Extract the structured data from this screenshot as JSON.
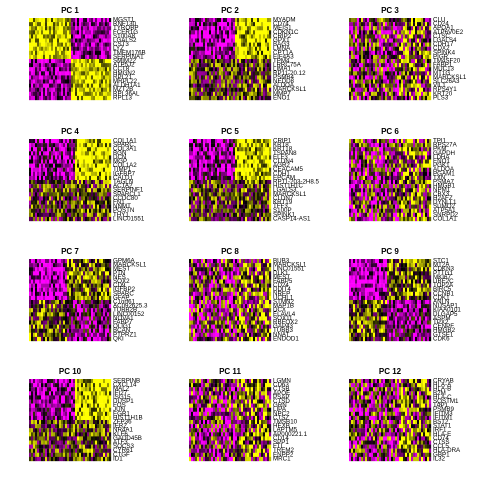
{
  "chart_data": {
    "type": "heatmap",
    "layout": "4 rows x 3 columns of dimensional-reduction heatmaps",
    "colors": {
      "low": "#ff00ff",
      "mid": "#000000",
      "high": "#ffff00"
    },
    "panels": [
      {
        "title": "PC 1",
        "pattern": "blocks",
        "genes": [
          "MGST1",
          "RNF130",
          "TYROBP",
          "FCER1G",
          "S100A8",
          "LGALS2",
          "CST3",
          "LYZ",
          "TMEM176B",
          "SERPINA1",
          "SMIM22",
          "ATP5J2",
          "CCT8",
          "HMGN2",
          "RPL21",
          "MRPL22",
          "ALDH1A1",
          "MZT2B",
          "RPL36AL",
          "RPL13"
        ]
      },
      {
        "title": "PC 2",
        "pattern": "right-yellow",
        "genes": [
          "MYADM",
          "CD74",
          "MEIS1",
          "CDKN1C",
          "CRIP2",
          "GPX1",
          "BAG3",
          "LMNA",
          "CPT1A",
          "EIF4A3",
          "TPM4",
          "LRRC75A",
          "LIMA1",
          "RP11-20.12",
          "PSMB4",
          "NEDD8",
          "ALDOA",
          "MARCKSL1",
          "MMP7",
          "ENO1"
        ]
      },
      {
        "title": "PC 3",
        "pattern": "noise",
        "genes": [
          "CLU",
          "CD24",
          "APOA1",
          "ATP6V0E2",
          "CTSC",
          "LGALS4",
          "CDH17",
          "CDX2",
          "SPINK4",
          "PIGR",
          "TM4SF20",
          "FABP1",
          "MUC13",
          "MT1G",
          "MARCKSL1",
          "SLC26A3",
          "VIL1",
          "RPS4Y1",
          "KRT20",
          "PLS3"
        ]
      },
      {
        "title": "PC 4",
        "pattern": "right-yellow",
        "genes": [
          "COL1A1",
          "SPARC",
          "COL3A1",
          "BGN",
          "DCN",
          "MGP",
          "COL1A2",
          "TIMP1",
          "IGFBP7",
          "CALD1",
          "TAGLN",
          "ACTA2",
          "SERPINF1",
          "SPARCL1",
          "CCDC80",
          "FN1",
          "NNMT",
          "POSTN",
          "THY1",
          "LINC01551"
        ]
      },
      {
        "title": "PC 5",
        "pattern": "right-yellow",
        "genes": [
          "CRIP1",
          "KRT8",
          "KRT18",
          "TSPAN8",
          "ELF3",
          "CLDN4",
          "AGR2",
          "CEACAM5",
          "CDH1",
          "EPCAM",
          "RP11-203-2H8.5",
          "HIST1H1C",
          "LGALS3",
          "MARCKSL1",
          "CLDN7",
          "KRT19",
          "TFF3",
          "S100P",
          "SPINK1",
          "CASP14-AS1"
        ]
      },
      {
        "title": "PC 6",
        "pattern": "noise",
        "genes": [
          "TPI1",
          "RPS27A",
          "PKM",
          "GAPDH",
          "LDHA",
          "ENO1",
          "PGK1",
          "ALDOA",
          "PGAM1",
          "TXN",
          "PSMA7",
          "HMGB1",
          "NPM1",
          "CBX3",
          "H2AFZ",
          "DYNLL1",
          "SUMO2",
          "ATP5A1",
          "SNRPD2",
          "COL1A1"
        ]
      },
      {
        "title": "PC 7",
        "pattern": "left-magenta",
        "genes": [
          "GPM6A",
          "MARCKSL1",
          "MEST",
          "PTN",
          "NES",
          "SOX2",
          "CD9",
          "IGFBP2",
          "SPARC",
          "GFAP",
          "C1orf61",
          "AC092625.3",
          "TUBB2B",
          "LINC00152",
          "NOVA1",
          "FABP7",
          "OLIG1",
          "BCAN",
          "PTPRZ1",
          "QKI"
        ]
      },
      {
        "title": "PC 8",
        "pattern": "noise",
        "genes": [
          "BUB3",
          "MARCKSL1",
          "LINC01551",
          "DLK1",
          "MEST",
          "FABP5",
          "CD24",
          "DDIT4",
          "NREP",
          "UCHL1",
          "STMN2",
          "MAP1B",
          "DCX",
          "ELAVL4",
          "SOX11",
          "RBFOX2",
          "GAP43",
          "TUBB3",
          "NNAT",
          "ENDOD1"
        ]
      },
      {
        "title": "PC 9",
        "pattern": "left-magenta",
        "genes": [
          "STC1",
          "MT2A",
          "CDKN3",
          "PTTG1",
          "MKI67",
          "UBE2C",
          "TOP2A",
          "BIRC5",
          "CCNB1",
          "CDK1",
          "ANLN",
          "NUSAP1",
          "KIAA0101",
          "DLGAP5",
          "ASPM",
          "TPX2",
          "CENPF",
          "HMGB2",
          "GTSE1",
          "CDK6"
        ]
      },
      {
        "title": "PC 10",
        "pattern": "right-yellow",
        "genes": [
          "SERPINB",
          "CXCL14",
          "MAL2",
          "IFI27",
          "ISG15",
          "DUSP1",
          "FOS",
          "JUN",
          "EGR1",
          "HIST1H1B",
          "ZFP36",
          "IER2",
          "NR4A1",
          "KLF6",
          "GADD45B",
          "ATF3",
          "SOCS3",
          "CYR61",
          "CTGF",
          "ID1"
        ]
      },
      {
        "title": "PC 11",
        "pattern": "noise",
        "genes": [
          "LGMN",
          "CD63",
          "CTSB",
          "APOE",
          "PSAP",
          "CTSD",
          "GRN",
          "LIPA",
          "NPC2",
          "CTSZ",
          "TMSB10",
          "HEXB",
          "LAPTM5",
          "AP000221.1",
          "CD14",
          "SPP1",
          "FTL",
          "TREM2",
          "ENPP2",
          "MRC1"
        ]
      },
      {
        "title": "PC 12",
        "pattern": "noise",
        "genes": [
          "CRYAB",
          "HLA-A",
          "HLA-B",
          "B2M",
          "HLA-C",
          "SQSTM1",
          "TAP1",
          "PSMB9",
          "IFITM3",
          "IFITM1",
          "BST2",
          "STAT1",
          "IRF1",
          "HLA-E",
          "CD74",
          "CTSS",
          "CCL5",
          "HLA-DRA",
          "GBP1",
          "IL32"
        ]
      }
    ]
  }
}
